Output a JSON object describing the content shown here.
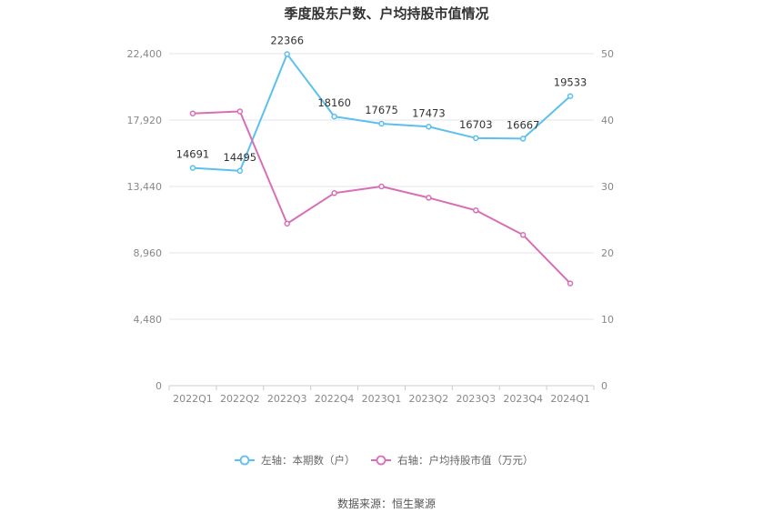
{
  "chart_data": {
    "type": "line",
    "title": "季度股东户数、户均持股市值情况",
    "categories": [
      "2022Q1",
      "2022Q2",
      "2022Q3",
      "2022Q4",
      "2023Q1",
      "2023Q2",
      "2023Q3",
      "2023Q4",
      "2024Q1"
    ],
    "left_axis": {
      "ticks": [
        "0",
        "4,480",
        "8,960",
        "13,440",
        "17,920",
        "22,400"
      ],
      "ylim": [
        0,
        22400
      ]
    },
    "right_axis": {
      "ticks": [
        "0",
        "10",
        "20",
        "30",
        "40",
        "50"
      ],
      "ylim": [
        0,
        50
      ]
    },
    "series": [
      {
        "name": "左轴：本期数（户）",
        "axis": "left",
        "color": "#5bbfef",
        "values": [
          14691,
          14495,
          22366,
          18160,
          17675,
          17473,
          16703,
          16667,
          19533
        ],
        "labels": [
          "14691",
          "14495",
          "22366",
          "18160",
          "17675",
          "17473",
          "16703",
          "16667",
          "19533"
        ]
      },
      {
        "name": "右轴：户均持股市值（万元）",
        "axis": "right",
        "color": "#d86fb6",
        "values": [
          41.0,
          41.3,
          24.4,
          29.0,
          30.0,
          28.3,
          26.4,
          22.7,
          15.4
        ]
      }
    ],
    "grid": true,
    "legend": "bottom-center"
  },
  "source": "数据来源：恒生聚源"
}
